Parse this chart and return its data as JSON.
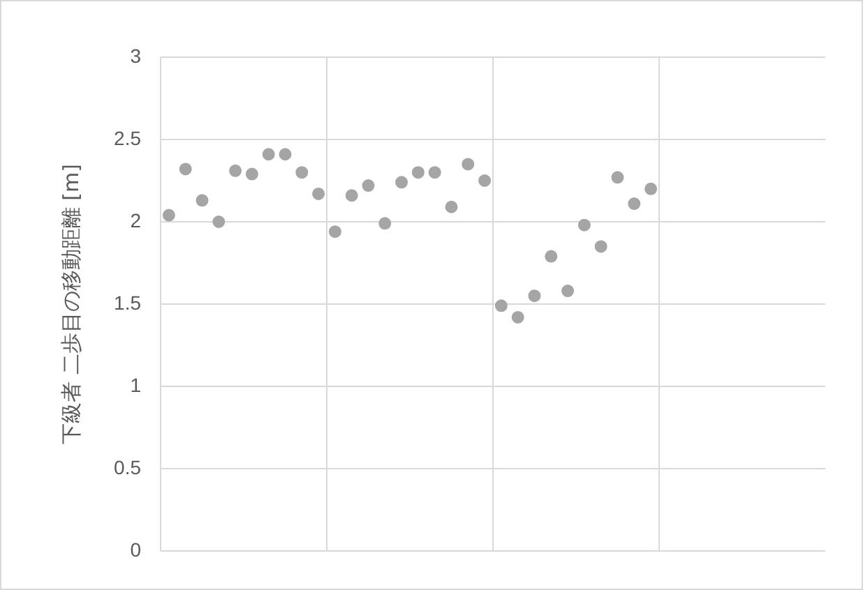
{
  "chart_data": {
    "type": "scatter",
    "ylabel": "下級者 二歩目の移動距離 [m]",
    "categories": [
      null,
      null,
      null,
      null,
      null,
      null,
      null,
      null,
      null,
      null,
      null,
      null,
      null,
      null,
      null,
      null,
      null,
      null,
      null,
      null,
      null,
      null,
      null,
      null,
      null,
      null,
      null,
      null,
      null,
      null,
      null,
      null,
      null,
      null,
      null,
      null,
      null,
      null,
      null,
      null
    ],
    "series": [
      {
        "color": "#a5a5a5",
        "values": [
          2.04,
          2.32,
          2.13,
          2.0,
          2.31,
          2.29,
          2.41,
          2.41,
          2.3,
          2.17,
          1.94,
          2.16,
          2.22,
          1.99,
          2.24,
          2.3,
          2.3,
          2.09,
          2.35,
          2.25,
          1.49,
          1.42,
          1.55,
          1.79,
          1.58,
          1.98,
          1.85,
          2.27,
          2.11,
          2.2,
          null,
          null,
          null,
          null,
          null,
          null,
          null,
          null,
          null,
          null
        ]
      }
    ],
    "ylim": [
      0,
      3
    ],
    "yticks": [
      0,
      0.5,
      1,
      1.5,
      2,
      2.5,
      3
    ],
    "grid": true,
    "legend": false,
    "tick_labels": "y",
    "marker": "circle"
  }
}
